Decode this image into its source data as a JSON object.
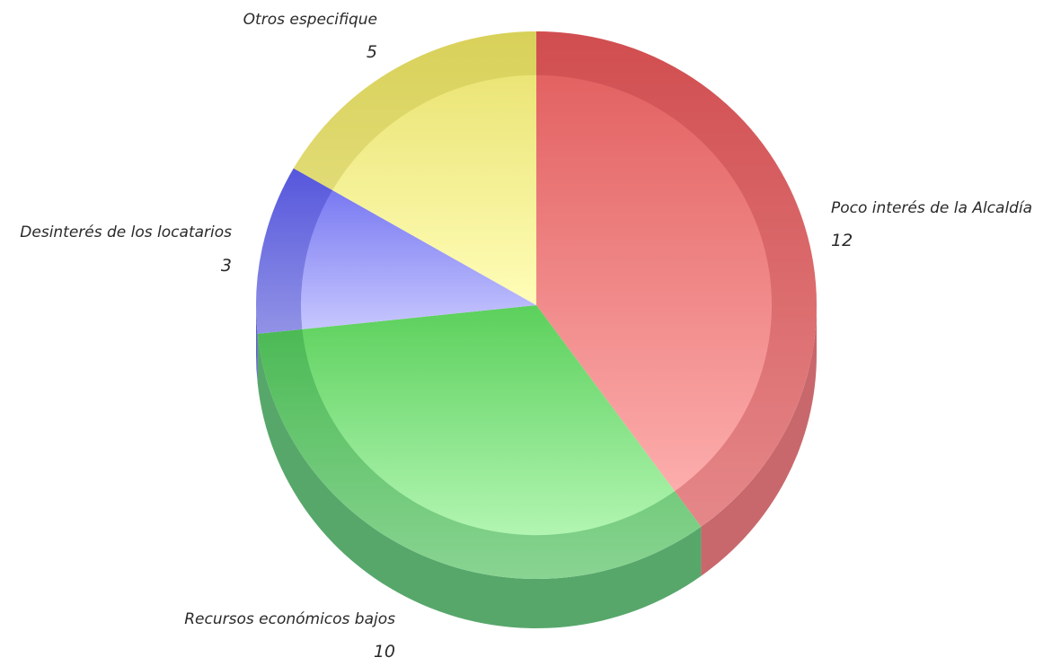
{
  "chart_data": {
    "type": "pie",
    "title": "",
    "slices": [
      {
        "label": "Poco interés de la Alcaldía",
        "value": 12,
        "color": "#e05a5a",
        "light_color": "#ffb3b3",
        "dark_color": "#b5363b"
      },
      {
        "label": "Recursos económicos bajos",
        "value": 10,
        "color": "#5bd05b",
        "light_color": "#c2fcc2",
        "dark_color": "#1f8a3a"
      },
      {
        "label": "Desinterés de los locatarios",
        "value": 3,
        "color": "#6d6df0",
        "light_color": "#c9c9ff",
        "dark_color": "#2a2fb8"
      },
      {
        "label": "Otros especifique",
        "value": 5,
        "color": "#e7e06a",
        "light_color": "#fffdb8",
        "dark_color": "#bdb43a"
      }
    ],
    "start_angle_deg": 0,
    "direction": "clockwise",
    "style": "3d-tilted",
    "legend": "none"
  }
}
